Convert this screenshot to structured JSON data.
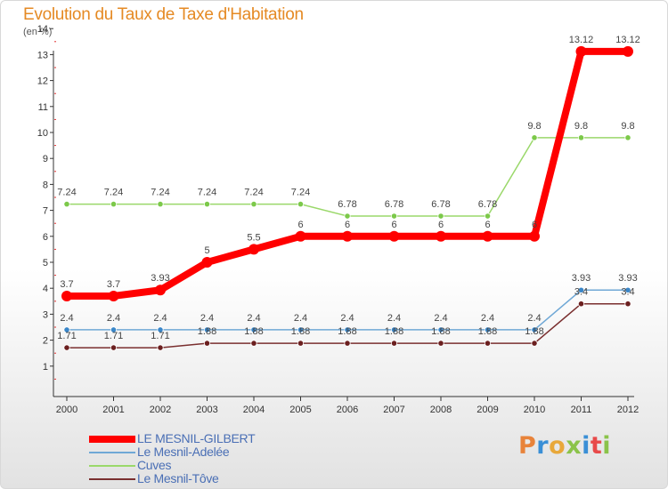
{
  "header": {
    "title": "Evolution du Taux de Taxe d'Habitation",
    "unit": "(en %)"
  },
  "logo": {
    "text": "Proxiti"
  },
  "chart_data": {
    "type": "line",
    "title": "Evolution du Taux de Taxe d'Habitation",
    "ylabel": "(en %)",
    "xlabel": "",
    "ylim": [
      0.5,
      14
    ],
    "y_ticks": [
      1,
      2,
      3,
      4,
      5,
      6,
      7,
      8,
      9,
      10,
      11,
      12,
      13,
      14
    ],
    "categories": [
      "2000",
      "2001",
      "2002",
      "2003",
      "2004",
      "2005",
      "2006",
      "2007",
      "2008",
      "2009",
      "2010",
      "2011",
      "2012"
    ],
    "series": [
      {
        "name": "LE MESNIL-GILBERT",
        "color": "#ff0000",
        "values": [
          3.7,
          3.7,
          3.93,
          5,
          5.5,
          6,
          6,
          6,
          6,
          6,
          6,
          13.12,
          13.12
        ],
        "labels": [
          "3.7",
          "3.7",
          "3.93",
          "5",
          "5.5",
          "6",
          "6",
          "6",
          "6",
          "6",
          "6",
          "13.12",
          "13.12"
        ]
      },
      {
        "name": "Le Mesnil-Adelée",
        "color": "#6fa8d6",
        "values": [
          2.4,
          2.4,
          2.4,
          2.4,
          2.4,
          2.4,
          2.4,
          2.4,
          2.4,
          2.4,
          2.4,
          3.93,
          3.93
        ],
        "labels": [
          "2.4",
          "2.4",
          "2.4",
          "2.4",
          "2.4",
          "2.4",
          "2.4",
          "2.4",
          "2.4",
          "2.4",
          "2.4",
          "3.93",
          "3.93"
        ]
      },
      {
        "name": "Cuves",
        "color": "#9ad86a",
        "values": [
          7.24,
          7.24,
          7.24,
          7.24,
          7.24,
          7.24,
          6.78,
          6.78,
          6.78,
          6.78,
          9.8,
          9.8,
          9.8
        ],
        "labels": [
          "7.24",
          "7.24",
          "7.24",
          "7.24",
          "7.24",
          "7.24",
          "6.78",
          "6.78",
          "6.78",
          "6.78",
          "9.8",
          "9.8",
          "9.8"
        ]
      },
      {
        "name": "Le Mesnil-Tôve",
        "color": "#7a2f2f",
        "values": [
          1.71,
          1.71,
          1.71,
          1.88,
          1.88,
          1.88,
          1.88,
          1.88,
          1.88,
          1.88,
          1.88,
          3.4,
          3.4
        ],
        "labels": [
          "1.71",
          "1.71",
          "1.71",
          "1.88",
          "1.88",
          "1.88",
          "1.88",
          "1.88",
          "1.88",
          "1.88",
          "1.88",
          "3.4",
          "3.4"
        ]
      }
    ]
  }
}
